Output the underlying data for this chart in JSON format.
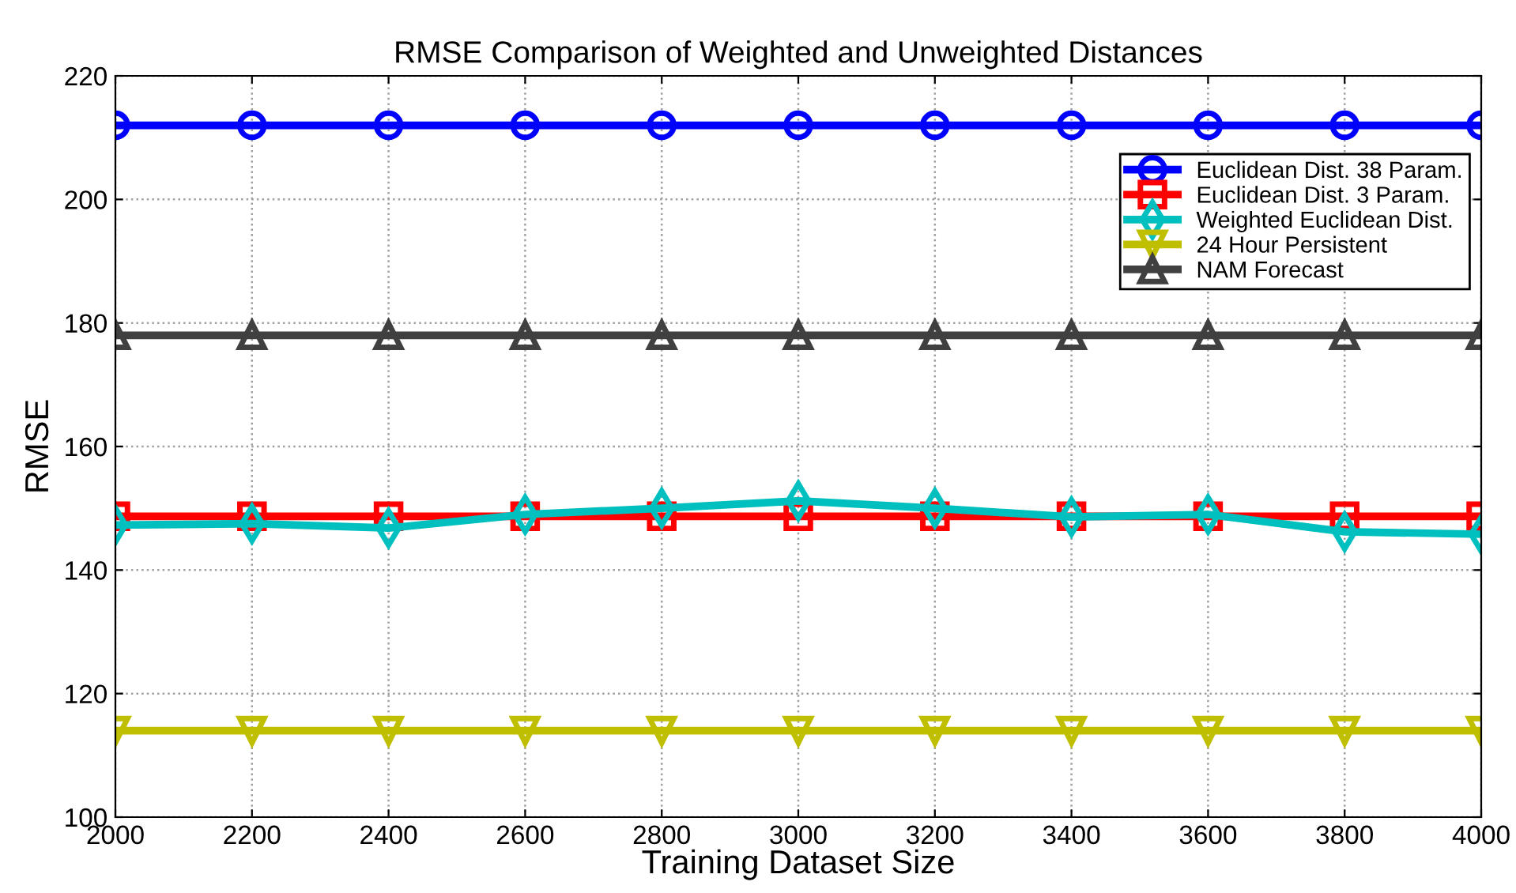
{
  "chart_data": {
    "type": "line",
    "title": "RMSE Comparison of Weighted and Unweighted Distances",
    "xlabel": "Training Dataset Size",
    "ylabel": "RMSE",
    "x": [
      2000,
      2200,
      2400,
      2600,
      2800,
      3000,
      3200,
      3400,
      3600,
      3800,
      4000
    ],
    "series": [
      {
        "name": "Euclidean Dist. 38 Param.",
        "color": "#0000ff",
        "marker": "circle",
        "values": [
          212,
          212,
          212,
          212,
          212,
          212,
          212,
          212,
          212,
          212,
          212
        ]
      },
      {
        "name": "Euclidean Dist. 3 Param.",
        "color": "#ff0000",
        "marker": "square",
        "values": [
          148.7,
          148.7,
          148.7,
          148.7,
          148.7,
          148.7,
          148.7,
          148.7,
          148.7,
          148.7,
          148.7
        ]
      },
      {
        "name": "Weighted Euclidean Dist.",
        "color": "#00bfbf",
        "marker": "diamond",
        "values": [
          147.3,
          147.5,
          146.8,
          149,
          150,
          151.2,
          150,
          148.6,
          149,
          146.2,
          145.8
        ]
      },
      {
        "name": "24 Hour Persistent",
        "color": "#bfbf00",
        "marker": "triangle_down",
        "values": [
          114,
          114,
          114,
          114,
          114,
          114,
          114,
          114,
          114,
          114,
          114
        ]
      },
      {
        "name": "NAM Forecast",
        "color": "#404040",
        "marker": "triangle",
        "values": [
          178,
          178,
          178,
          178,
          178,
          178,
          178,
          178,
          178,
          178,
          178
        ]
      }
    ],
    "xlim": [
      2000,
      4000
    ],
    "xticks": [
      2000,
      2200,
      2400,
      2600,
      2800,
      3000,
      3200,
      3400,
      3600,
      3800,
      4000
    ],
    "ylim": [
      100,
      220
    ],
    "yticks": [
      100,
      120,
      140,
      160,
      180,
      200,
      220
    ],
    "grid": true,
    "legend": "upper right",
    "line_style": "solid"
  }
}
